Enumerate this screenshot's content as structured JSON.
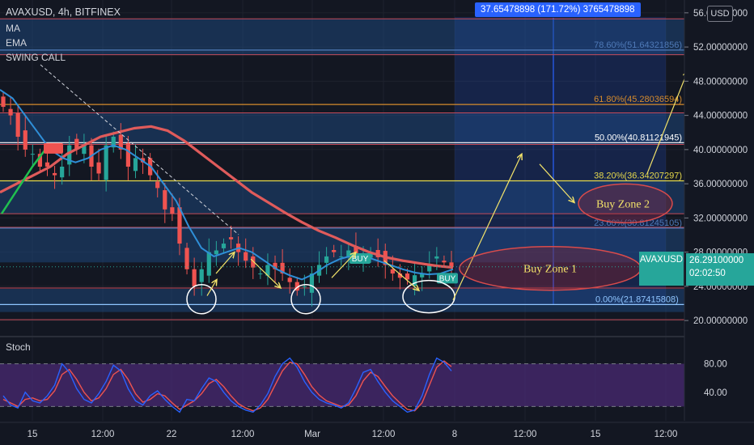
{
  "header": {
    "ticker": "AVAXUSD, 4h, BITFINEX",
    "indicators": [
      "MA",
      "EMA",
      "SWING CALL"
    ],
    "stoch_label": "Stoch",
    "currency_button": "USD"
  },
  "measure_label": "37.65478898 (171.72%) 3765478898",
  "price_tag": {
    "symbol": "AVAXUSD",
    "price": "26.29100000",
    "timer": "02:02:50"
  },
  "colors": {
    "background": "#131722",
    "up": "#26a69a",
    "down": "#ef5350",
    "ma": "#e05b5b",
    "ema": "#2f8fd8",
    "zone_blue": "#1e4f8c",
    "stoch_k": "#2962ff",
    "stoch_d": "#ef5350",
    "stoch_band": "#4a2a73",
    "annotation_yellow": "#f3e36a"
  },
  "fib_levels": [
    {
      "label": "78.60%(51.64321856)",
      "value": 51.64321856
    },
    {
      "label": "61.80%(45.28036594)",
      "value": 45.28036594
    },
    {
      "label": "50.00%(40.81121945)",
      "value": 40.81121945
    },
    {
      "label": "38.20%(36.34207297)",
      "value": 36.34207297
    },
    {
      "label": "23.60%(30.81245105)",
      "value": 30.81245105
    },
    {
      "label": "0.00%(21.87415808)",
      "value": 21.87415808
    }
  ],
  "annotations": {
    "buy_zone_1": "Buy Zone 1",
    "buy_zone_2": "Buy Zone 2",
    "signal_buy": "BUY",
    "signal_sell": "SELL"
  },
  "chart_data": {
    "type": "candlestick",
    "title": "AVAXUSD, 4h, BITFINEX",
    "y_axis": {
      "ticks": [
        "56.00000000",
        "52.00000000",
        "48.00000000",
        "44.00000000",
        "40.00000000",
        "36.00000000",
        "32.00000000",
        "28.00000000",
        "24.00000000",
        "20.00000000"
      ],
      "ylim": [
        18.5,
        57.5
      ]
    },
    "x_axis": {
      "ticks": [
        "15",
        "12:00",
        "22",
        "12:00",
        "Mar",
        "12:00",
        "8",
        "12:00",
        "15",
        "12:00"
      ]
    },
    "stoch_axis": {
      "ticks": [
        "80.00",
        "40.00"
      ],
      "ylim": [
        0,
        100
      ],
      "bands": [
        20,
        80
      ]
    },
    "last_price": 26.291,
    "close_path": [
      45,
      44,
      41.5,
      40,
      39.5,
      38,
      38,
      37,
      38,
      40.5,
      40,
      40.5,
      38,
      37.2,
      40.5,
      41.5,
      40,
      38,
      39,
      38.5,
      37,
      35.5,
      33,
      32.5,
      29,
      26,
      24,
      26,
      28,
      28.2,
      29,
      29.5,
      28,
      27,
      26.2,
      25.5,
      26.5,
      26,
      25.5,
      24.5,
      23.5,
      24,
      25.5,
      26.5,
      27.5,
      28,
      27.5,
      28.2,
      27.8,
      27.6,
      28,
      27.4,
      26.5,
      25.5,
      25,
      24.8,
      25.3,
      25.5,
      26.5,
      27.5,
      26.8,
      26.29
    ],
    "series": [
      {
        "name": "MA",
        "values": [
          35,
          36,
          37,
          38,
          39.5,
          40.5,
          41.5,
          42,
          42.5,
          42.7,
          42.2,
          41,
          39.5,
          38,
          36.5,
          35,
          33.8,
          32.6,
          31.5,
          30.5,
          29.7,
          28.8,
          28,
          27.4,
          27,
          26.7,
          26.4,
          26.2
        ]
      },
      {
        "name": "EMA",
        "values": [
          47,
          46,
          44,
          42,
          40,
          39,
          38.5,
          39,
          40,
          40.5,
          40,
          39,
          38,
          36,
          34,
          31,
          28.5,
          27.5,
          28,
          28.5,
          28,
          27,
          26,
          25.3,
          24.8,
          25.5,
          26.5,
          27.2,
          27.6,
          27.5,
          27,
          26.5,
          26,
          25.6,
          25.4,
          25.5,
          26
        ]
      }
    ],
    "stoch": {
      "k": [
        35,
        22,
        18,
        40,
        28,
        25,
        35,
        50,
        80,
        68,
        45,
        30,
        25,
        38,
        55,
        78,
        70,
        45,
        28,
        22,
        35,
        42,
        30,
        20,
        12,
        30,
        28,
        45,
        60,
        55,
        40,
        28,
        20,
        15,
        12,
        22,
        38,
        62,
        80,
        88,
        75,
        55,
        40,
        30,
        25,
        22,
        18,
        25,
        45,
        68,
        72,
        55,
        40,
        28,
        20,
        12,
        15,
        35,
        65,
        88,
        82,
        70
      ],
      "d": [
        30,
        25,
        20,
        30,
        32,
        28,
        30,
        42,
        65,
        72,
        58,
        40,
        28,
        32,
        45,
        65,
        72,
        58,
        38,
        26,
        30,
        38,
        35,
        25,
        16,
        22,
        28,
        38,
        52,
        58,
        48,
        35,
        24,
        18,
        14,
        18,
        30,
        50,
        70,
        82,
        80,
        65,
        48,
        36,
        28,
        24,
        20,
        22,
        35,
        56,
        68,
        62,
        48,
        35,
        25,
        16,
        14,
        25,
        50,
        75,
        84,
        76
      ]
    }
  }
}
